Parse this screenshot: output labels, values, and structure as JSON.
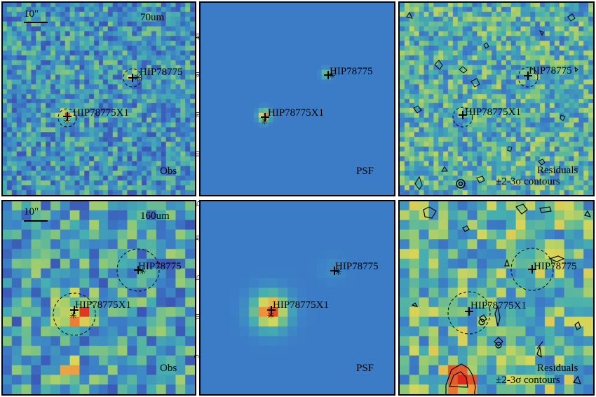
{
  "colors": {
    "bg_psf": "#3f7fc2",
    "frame": "#000000",
    "contour": "#000000"
  },
  "rows": [
    {
      "band": "70um",
      "scalebar": "10\"",
      "panels": [
        {
          "id": "obs",
          "label": "Obs",
          "sources": [
            {
              "name": "HIP78775",
              "circle": true
            },
            {
              "name": "HIP78775X1",
              "circle": true
            }
          ]
        },
        {
          "id": "psf",
          "label": "PSF",
          "sources": [
            {
              "name": "HIP78775",
              "circle": false
            },
            {
              "name": "HIP78775X1",
              "circle": false
            }
          ],
          "yticks": [
            "10",
            "20",
            "30",
            "40"
          ]
        },
        {
          "id": "res",
          "label": "Residuals",
          "sublabel": "±2-3σ contours",
          "sources": [
            {
              "name": "HIP78775",
              "circle": true
            },
            {
              "name": "HIP78775X1",
              "circle": true
            }
          ]
        }
      ]
    },
    {
      "band": "160um",
      "scalebar": "10\"",
      "panels": [
        {
          "id": "obs",
          "label": "Obs",
          "sources": [
            {
              "name": "HIP78775",
              "circle": true
            },
            {
              "name": "HIP78775X1",
              "circle": true
            }
          ]
        },
        {
          "id": "psf",
          "label": "PSF",
          "sources": [
            {
              "name": "HIP78775",
              "circle": false
            },
            {
              "name": "HIP78775X1",
              "circle": false
            }
          ],
          "yticks": [
            "5",
            "10",
            "15",
            "20"
          ],
          "ytick_top": "25"
        },
        {
          "id": "res",
          "label": "Residuals",
          "sublabel": "±2-3σ contours",
          "sources": [
            {
              "name": "HIP78775",
              "circle": true
            },
            {
              "name": "HIP78775X1",
              "circle": true
            }
          ]
        }
      ]
    }
  ]
}
